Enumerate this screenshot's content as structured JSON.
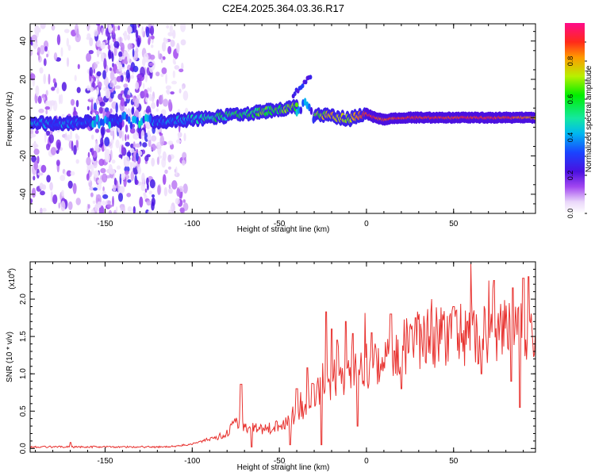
{
  "figure_title": "C2E4.2025.364.03.36.R17",
  "chart_data": [
    {
      "type": "heatmap",
      "title": "C2E4.2025.364.03.36.R17",
      "xlabel": "Height of straight line (km)",
      "ylabel": "Frequency (Hz)",
      "xlim": [
        -193,
        97
      ],
      "ylim": [
        -50,
        49
      ],
      "xticks": [
        -150,
        -100,
        -50,
        0,
        50
      ],
      "xtick_labels": [
        "-150",
        "-100",
        "-50",
        "0",
        "50"
      ],
      "yticks": [
        -40,
        -20,
        0,
        20,
        40
      ],
      "ytick_labels": [
        "-40",
        "-20",
        "0",
        "20",
        "40"
      ],
      "colorbar": {
        "label": "Normalized spectral amplitude",
        "range": [
          0,
          1
        ],
        "ticks": [
          0.0,
          0.2,
          0.4,
          0.6,
          0.8
        ],
        "tick_labels": [
          "0.0",
          "0.2",
          "0.4",
          "0.6",
          "0.8"
        ],
        "colormap": "rainbow (white-violet-blue-cyan-green-yellow-orange-red-magenta)"
      },
      "ridge": {
        "description": "main spectral ridge frequency (Hz) vs height (km)",
        "x": [
          -193,
          -170,
          -150,
          -130,
          -120,
          -100,
          -80,
          -60,
          -45,
          -35,
          -30,
          -20,
          -10,
          -5,
          0,
          5,
          10,
          20,
          40,
          60,
          80,
          97
        ],
        "freq": [
          -3,
          -3,
          -2,
          -2,
          -2,
          -1,
          1,
          3,
          5,
          6,
          1,
          1,
          -1,
          1,
          2,
          0,
          -1,
          0,
          0,
          0,
          0,
          0
        ],
        "amplitude": [
          0.35,
          0.35,
          0.3,
          0.3,
          0.35,
          0.4,
          0.55,
          0.6,
          0.65,
          0.6,
          0.65,
          0.8,
          0.7,
          0.85,
          0.9,
          0.9,
          0.85,
          0.9,
          0.9,
          0.9,
          0.9,
          0.8
        ]
      }
    },
    {
      "type": "line",
      "xlabel": "Height of straight line (km)",
      "ylabel": "SNR (10 * v/v)",
      "scale_label": "(x10",
      "scale_exponent": "4",
      "scale_suffix": ")",
      "xlim": [
        -193,
        97
      ],
      "ylim": [
        -0.05,
        2.5
      ],
      "xticks": [
        -150,
        -100,
        -50,
        0,
        50
      ],
      "xtick_labels": [
        "-150",
        "-100",
        "-50",
        "0",
        "50"
      ],
      "yticks": [
        0.0,
        0.5,
        1.0,
        1.5,
        2.0
      ],
      "ytick_labels": [
        "0.0",
        "0.5",
        "1.0",
        "1.5",
        "2.0"
      ],
      "series": [
        {
          "name": "SNR",
          "color": "#e8322f",
          "envelope_x": [
            -193,
            -120,
            -110,
            -100,
            -90,
            -80,
            -75,
            -70,
            -60,
            -50,
            -40,
            -35,
            -30,
            -25,
            -20,
            -10,
            0,
            10,
            20,
            30,
            40,
            50,
            60,
            70,
            80,
            90,
            97
          ],
          "envelope_y": [
            0.02,
            0.02,
            0.03,
            0.06,
            0.12,
            0.2,
            0.35,
            0.3,
            0.25,
            0.3,
            0.4,
            0.6,
            0.75,
            0.8,
            0.75,
            0.95,
            1.1,
            1.2,
            1.35,
            1.45,
            1.5,
            1.5,
            1.55,
            1.6,
            1.65,
            1.65,
            1.6
          ],
          "peaks": [
            {
              "x": -170,
              "y": 0.08
            },
            {
              "x": -72,
              "y": 0.86
            },
            {
              "x": -40,
              "y": 0.8
            },
            {
              "x": -34,
              "y": 1.08
            },
            {
              "x": -31,
              "y": 0.87
            },
            {
              "x": -23,
              "y": 1.83
            },
            {
              "x": -20,
              "y": 1.6
            },
            {
              "x": -17,
              "y": 1.45
            },
            {
              "x": -12,
              "y": 1.7
            },
            {
              "x": -8,
              "y": 1.54
            },
            {
              "x": 3,
              "y": 1.55
            },
            {
              "x": 14,
              "y": 1.8
            },
            {
              "x": 28,
              "y": 1.75
            },
            {
              "x": 50,
              "y": 1.9
            },
            {
              "x": 73,
              "y": 2.25
            },
            {
              "x": 84,
              "y": 2.15
            },
            {
              "x": 90,
              "y": 2.28
            },
            {
              "x": 93,
              "y": 2.3
            }
          ],
          "troughs": [
            {
              "x": -66,
              "y": 0.02
            },
            {
              "x": -44,
              "y": 0.05
            },
            {
              "x": -26,
              "y": 0.05
            },
            {
              "x": -5,
              "y": 0.3
            },
            {
              "x": 20,
              "y": 0.8
            },
            {
              "x": 66,
              "y": 1.0
            },
            {
              "x": 83,
              "y": 0.9
            },
            {
              "x": 88,
              "y": 0.55
            }
          ]
        }
      ]
    }
  ]
}
